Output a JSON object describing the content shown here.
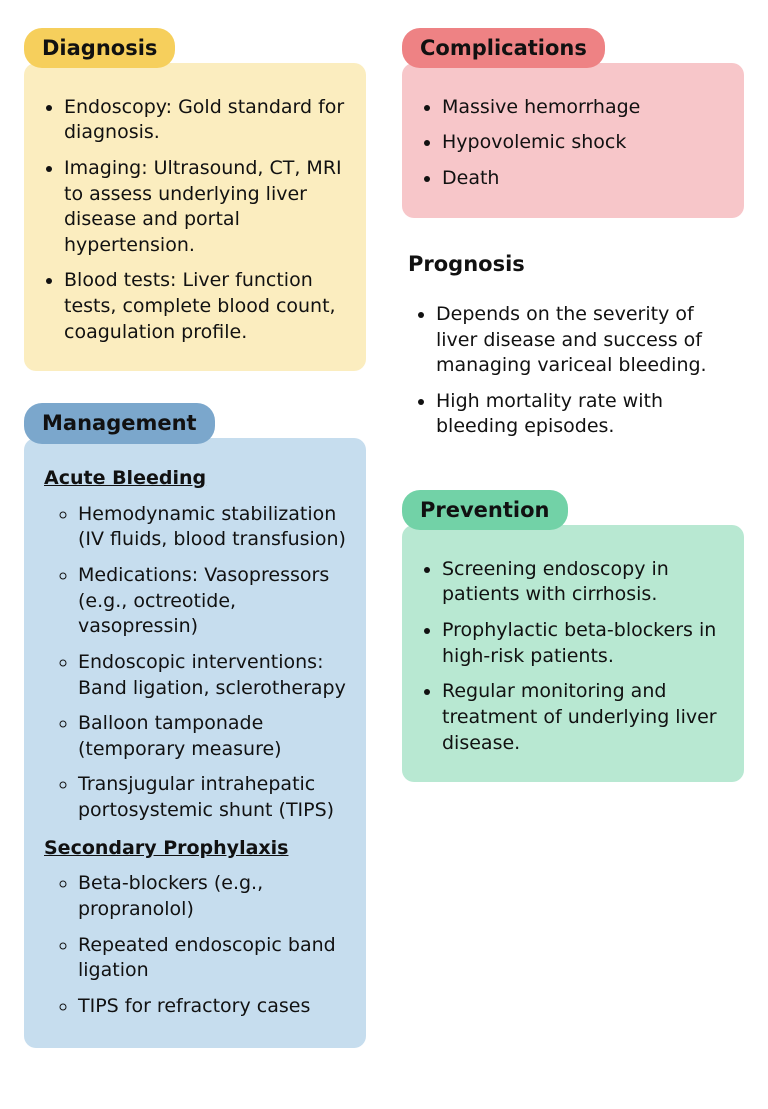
{
  "colors": {
    "diagnosis_pill": "#f6cf5c",
    "diagnosis_box": "#fbedbf",
    "management_pill": "#7ba7cc",
    "management_box": "#c6ddee",
    "complications_pill": "#ee8284",
    "complications_box": "#f7c6c9",
    "prevention_pill": "#72d2a7",
    "prevention_box": "#b8e8d2",
    "text": "#111111",
    "background": "#ffffff"
  },
  "diagnosis": {
    "title": "Diagnosis",
    "items": [
      "Endoscopy: Gold standard for diagnosis.",
      "Imaging: Ultrasound, CT, MRI to assess underlying liver disease and portal hypertension.",
      "Blood tests: Liver function tests, complete blood count, coagulation profile."
    ]
  },
  "management": {
    "title": "Management",
    "sub1_title": "Acute Bleeding",
    "sub1_items": [
      "Hemodynamic stabilization (IV fluids, blood transfusion)",
      "Medications: Vasopressors (e.g., octreotide, vasopressin)",
      "Endoscopic interventions: Band ligation, sclerotherapy",
      "Balloon tamponade (temporary measure)",
      "Transjugular intrahepatic portosystemic shunt (TIPS)"
    ],
    "sub2_title": "Secondary Prophylaxis",
    "sub2_items": [
      "Beta-blockers (e.g., propranolol)",
      "Repeated endoscopic band ligation",
      "TIPS for refractory cases"
    ]
  },
  "complications": {
    "title": "Complications",
    "items": [
      "Massive hemorrhage",
      "Hypovolemic shock",
      "Death"
    ]
  },
  "prognosis": {
    "title": "Prognosis",
    "items": [
      "Depends on the severity of liver disease and success of managing variceal bleeding.",
      "High mortality rate with bleeding episodes."
    ]
  },
  "prevention": {
    "title": "Prevention",
    "items": [
      "Screening endoscopy in patients with cirrhosis.",
      "Prophylactic beta-blockers in high-risk patients.",
      "Regular monitoring and treatment of underlying liver disease."
    ]
  }
}
